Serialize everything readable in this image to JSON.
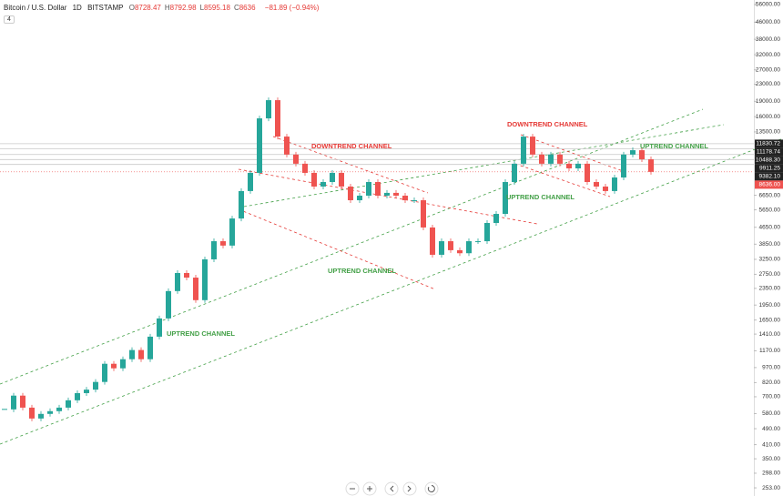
{
  "header": {
    "symbol": "Bitcoin / U.S. Dollar",
    "interval": "1D",
    "exchange": "BITSTAMP",
    "ohlc": [
      {
        "label": "O",
        "value": 8728.47
      },
      {
        "label": "H",
        "value": 8792.98
      },
      {
        "label": "L",
        "value": 8595.18
      },
      {
        "label": "C",
        "value": 8636.0
      }
    ],
    "change": "−81.89 (−0.94%)",
    "badge": "4"
  },
  "chart_data": {
    "type": "candlestick",
    "log": true,
    "grid": false,
    "ylim": [
      231,
      58920
    ],
    "yticks": [
      {
        "value": 56000,
        "label": "56000.00"
      },
      {
        "value": 46000,
        "label": "46000.00"
      },
      {
        "value": 38000,
        "label": "38000.00"
      },
      {
        "value": 32000,
        "label": "32000.00"
      },
      {
        "value": 27000,
        "label": "27000.00"
      },
      {
        "value": 23000,
        "label": "23000.00"
      },
      {
        "value": 19000,
        "label": "19000.00"
      },
      {
        "value": 16000,
        "label": "16000.00"
      },
      {
        "value": 13500,
        "label": "13500.00"
      },
      {
        "value": 6650,
        "label": "6650.00"
      },
      {
        "value": 5650,
        "label": "5650.00"
      },
      {
        "value": 4650,
        "label": "4650.00"
      },
      {
        "value": 3850,
        "label": "3850.00"
      },
      {
        "value": 3250,
        "label": "3250.00"
      },
      {
        "value": 2750,
        "label": "2750.00"
      },
      {
        "value": 2350,
        "label": "2350.00"
      },
      {
        "value": 1950,
        "label": "1950.00"
      },
      {
        "value": 1650,
        "label": "1650.00"
      },
      {
        "value": 1410,
        "label": "1410.00"
      },
      {
        "value": 1170,
        "label": "1170.00"
      },
      {
        "value": 970,
        "label": "970.00"
      },
      {
        "value": 820,
        "label": "820.00"
      },
      {
        "value": 700,
        "label": "700.00"
      },
      {
        "value": 580,
        "label": "580.00"
      },
      {
        "value": 490,
        "label": "490.00"
      },
      {
        "value": 410,
        "label": "410.00"
      },
      {
        "value": 350,
        "label": "350.00"
      },
      {
        "value": 298,
        "label": "298.00"
      },
      {
        "value": 253,
        "label": "253.00"
      }
    ],
    "price_lines": [
      {
        "value": 11830.72,
        "label": "11830.72"
      },
      {
        "value": 11178.74,
        "label": "11178.74"
      },
      {
        "value": 10488.3,
        "label": "10488.30"
      },
      {
        "value": 9911.25,
        "label": "9911.25"
      },
      {
        "value": 9382.1,
        "label": "9382.10"
      }
    ],
    "last_price": {
      "value": 8636,
      "label": "8636.00",
      "color": "#ef5350"
    },
    "up_color": "#26a69a",
    "down_color": "#ef5350",
    "series": [
      {
        "name": "BTCUSD",
        "values": [
          608,
          709,
          620,
          549,
          578,
          596,
          620,
          673,
          729,
          758,
          826,
          1012,
          962,
          1065,
          1180,
          1065,
          1370,
          1680,
          2280,
          2790,
          2650,
          2060,
          3250,
          3980,
          3790,
          5130,
          6970,
          8540,
          15700,
          19240,
          12810,
          10480,
          9460,
          8540,
          7330,
          7710,
          8540,
          7330,
          6290,
          6620,
          7710,
          6620,
          6830,
          6620,
          6290,
          6290,
          4640,
          3420,
          3980,
          3600,
          3480,
          3980,
          3980,
          4880,
          5400,
          7710,
          9460,
          12810,
          10480,
          9460,
          10480,
          9460,
          8980,
          9460,
          7710,
          7330,
          6970,
          8110,
          10480,
          11000,
          9940,
          8636
        ]
      }
    ],
    "annotations": [
      {
        "text": "DOWNTREND CHANNEL",
        "color": "#e53935"
      },
      {
        "text": "UPTREND CHANNEL",
        "color": "#43a047"
      },
      {
        "text": "UPTREND CHANNEL",
        "color": "#43a047"
      },
      {
        "text": "DOWNTREND CHANNEL",
        "color": "#e53935"
      },
      {
        "text": "UPTREND CHANNEL",
        "color": "#43a047"
      },
      {
        "text": "UPTREND CHANNEL",
        "color": "#43a047"
      }
    ]
  }
}
